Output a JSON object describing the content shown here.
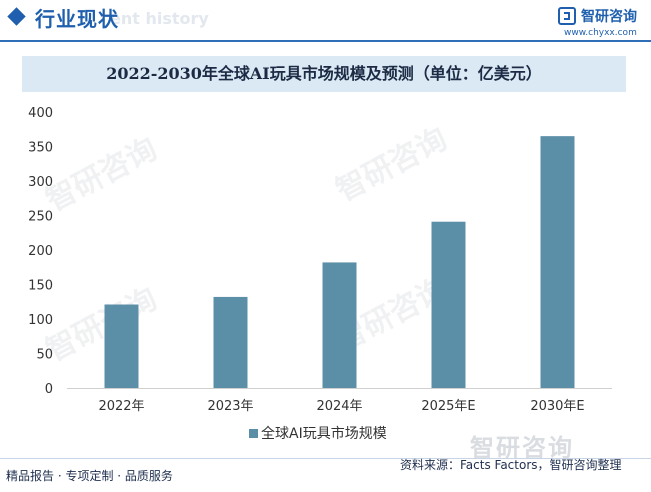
{
  "header": {
    "section_title": "行业现状",
    "watermark_en": "ent history",
    "logo_name": "智研咨询",
    "logo_url": "www.chyxx.com"
  },
  "watermark": {
    "text": "智研咨询"
  },
  "chart_data": {
    "type": "bar",
    "title": "2022-2030年全球AI玩具市场规模及预测（单位：亿美元）",
    "categories": [
      "2022年",
      "2023年",
      "2024年",
      "2025年E",
      "2030年E"
    ],
    "series": [
      {
        "name": "全球AI玩具市场规模",
        "values": [
          121,
          132,
          182,
          241,
          365
        ],
        "color": "#5b8fa8"
      }
    ],
    "ylim": [
      0,
      400
    ],
    "yticks": [
      0,
      50,
      100,
      150,
      200,
      250,
      300,
      350,
      400
    ],
    "grid": false,
    "legend": "bottom-center"
  },
  "footer": {
    "left": "精品报告 · 专项定制 · 品质服务",
    "right": "资料来源：Facts Factors，智研咨询整理",
    "brand": "智研咨询"
  }
}
